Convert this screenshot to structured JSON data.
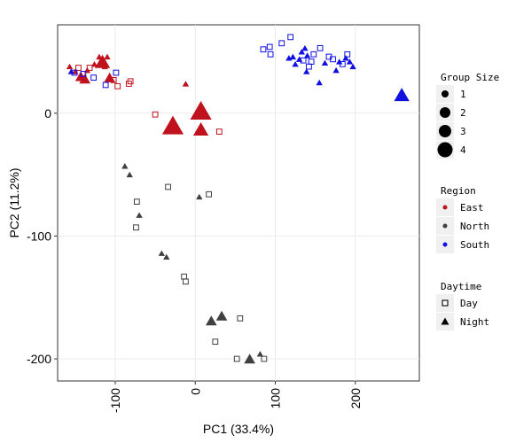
{
  "chart_data": {
    "type": "scatter",
    "xlabel": "PC1 (33.4%)",
    "ylabel": "PC2 (11.2%)",
    "xlim": [
      -172,
      280
    ],
    "ylim": [
      -218,
      72
    ],
    "x_ticks": [
      -100,
      0,
      100,
      200
    ],
    "y_ticks": [
      0,
      -100,
      -200
    ],
    "x_tick_labels": [
      "-100",
      "0",
      "100",
      "200"
    ],
    "y_tick_labels": [
      "0",
      "-100",
      "-200"
    ],
    "grid": true,
    "legend_position": "right",
    "colors": {
      "East": "#c0111e",
      "North": "#404040",
      "South": "#1010e0"
    },
    "legends": {
      "size": {
        "title": "Group Size",
        "items": [
          "1",
          "2",
          "3",
          "4"
        ]
      },
      "region": {
        "title": "Region",
        "items": [
          "East",
          "North",
          "South"
        ]
      },
      "daytime": {
        "title": "Daytime",
        "items": [
          "Day",
          "Night"
        ]
      }
    },
    "points": [
      {
        "x": -157,
        "y": 38,
        "region": "East",
        "daytime": "Night",
        "size": 1
      },
      {
        "x": -150,
        "y": 34,
        "region": "East",
        "daytime": "Night",
        "size": 1
      },
      {
        "x": -146,
        "y": 37,
        "region": "East",
        "daytime": "Day",
        "size": 1
      },
      {
        "x": -143,
        "y": 30,
        "region": "East",
        "daytime": "Night",
        "size": 2
      },
      {
        "x": -138,
        "y": 28,
        "region": "East",
        "daytime": "Night",
        "size": 2
      },
      {
        "x": -135,
        "y": 35,
        "region": "East",
        "daytime": "Night",
        "size": 1
      },
      {
        "x": -132,
        "y": 37,
        "region": "East",
        "daytime": "Day",
        "size": 1
      },
      {
        "x": -126,
        "y": 40,
        "region": "East",
        "daytime": "Night",
        "size": 1
      },
      {
        "x": -120,
        "y": 46,
        "region": "East",
        "daytime": "Night",
        "size": 1
      },
      {
        "x": -116,
        "y": 42,
        "region": "East",
        "daytime": "Night",
        "size": 3
      },
      {
        "x": -113,
        "y": 38,
        "region": "East",
        "daytime": "Night",
        "size": 1
      },
      {
        "x": -110,
        "y": 46,
        "region": "East",
        "daytime": "Night",
        "size": 1
      },
      {
        "x": -107,
        "y": 29,
        "region": "East",
        "daytime": "Night",
        "size": 2
      },
      {
        "x": -102,
        "y": 27,
        "region": "East",
        "daytime": "Day",
        "size": 1
      },
      {
        "x": -97,
        "y": 22,
        "region": "East",
        "daytime": "Day",
        "size": 1
      },
      {
        "x": -83,
        "y": 24,
        "region": "East",
        "daytime": "Day",
        "size": 1
      },
      {
        "x": -81,
        "y": 26,
        "region": "East",
        "daytime": "Day",
        "size": 1
      },
      {
        "x": -12,
        "y": 24,
        "region": "East",
        "daytime": "Night",
        "size": 1
      },
      {
        "x": -50,
        "y": -1,
        "region": "East",
        "daytime": "Day",
        "size": 1
      },
      {
        "x": -28,
        "y": -10,
        "region": "East",
        "daytime": "Night",
        "size": 4
      },
      {
        "x": 7,
        "y": 2,
        "region": "East",
        "daytime": "Night",
        "size": 4
      },
      {
        "x": 7,
        "y": -13,
        "region": "East",
        "daytime": "Night",
        "size": 3
      },
      {
        "x": 30,
        "y": -15,
        "region": "East",
        "daytime": "Day",
        "size": 1
      },
      {
        "x": -155,
        "y": 34,
        "region": "South",
        "daytime": "Night",
        "size": 1
      },
      {
        "x": -151,
        "y": 33,
        "region": "South",
        "daytime": "Day",
        "size": 1
      },
      {
        "x": -140,
        "y": 32,
        "region": "South",
        "daytime": "Day",
        "size": 1
      },
      {
        "x": -127,
        "y": 29,
        "region": "South",
        "daytime": "Day",
        "size": 1
      },
      {
        "x": -112,
        "y": 23,
        "region": "South",
        "daytime": "Day",
        "size": 1
      },
      {
        "x": -99,
        "y": 33,
        "region": "South",
        "daytime": "Day",
        "size": 1
      },
      {
        "x": 85,
        "y": 52,
        "region": "South",
        "daytime": "Day",
        "size": 1
      },
      {
        "x": 93,
        "y": 54,
        "region": "South",
        "daytime": "Day",
        "size": 1
      },
      {
        "x": 94,
        "y": 48,
        "region": "South",
        "daytime": "Day",
        "size": 1
      },
      {
        "x": 108,
        "y": 57,
        "region": "South",
        "daytime": "Day",
        "size": 1
      },
      {
        "x": 119,
        "y": 62,
        "region": "South",
        "daytime": "Day",
        "size": 1
      },
      {
        "x": 117,
        "y": 45,
        "region": "South",
        "daytime": "Night",
        "size": 1
      },
      {
        "x": 122,
        "y": 46,
        "region": "South",
        "daytime": "Night",
        "size": 1
      },
      {
        "x": 125,
        "y": 40,
        "region": "South",
        "daytime": "Night",
        "size": 1
      },
      {
        "x": 130,
        "y": 44,
        "region": "South",
        "daytime": "Night",
        "size": 1
      },
      {
        "x": 133,
        "y": 50,
        "region": "South",
        "daytime": "Night",
        "size": 1
      },
      {
        "x": 135,
        "y": 43,
        "region": "South",
        "daytime": "Day",
        "size": 1
      },
      {
        "x": 137,
        "y": 53,
        "region": "South",
        "daytime": "Night",
        "size": 1
      },
      {
        "x": 140,
        "y": 47,
        "region": "South",
        "daytime": "Night",
        "size": 1
      },
      {
        "x": 142,
        "y": 38,
        "region": "South",
        "daytime": "Day",
        "size": 1
      },
      {
        "x": 145,
        "y": 42,
        "region": "South",
        "daytime": "Day",
        "size": 1
      },
      {
        "x": 139,
        "y": 34,
        "region": "South",
        "daytime": "Night",
        "size": 1
      },
      {
        "x": 148,
        "y": 48,
        "region": "South",
        "daytime": "Day",
        "size": 1
      },
      {
        "x": 155,
        "y": 25,
        "region": "South",
        "daytime": "Night",
        "size": 1
      },
      {
        "x": 156,
        "y": 53,
        "region": "South",
        "daytime": "Day",
        "size": 1
      },
      {
        "x": 162,
        "y": 41,
        "region": "South",
        "daytime": "Night",
        "size": 1
      },
      {
        "x": 167,
        "y": 46,
        "region": "South",
        "daytime": "Day",
        "size": 1
      },
      {
        "x": 172,
        "y": 44,
        "region": "South",
        "daytime": "Day",
        "size": 1
      },
      {
        "x": 176,
        "y": 35,
        "region": "South",
        "daytime": "Night",
        "size": 1
      },
      {
        "x": 180,
        "y": 42,
        "region": "South",
        "daytime": "Night",
        "size": 1
      },
      {
        "x": 184,
        "y": 40,
        "region": "South",
        "daytime": "Day",
        "size": 1
      },
      {
        "x": 188,
        "y": 45,
        "region": "South",
        "daytime": "Night",
        "size": 1
      },
      {
        "x": 190,
        "y": 48,
        "region": "South",
        "daytime": "Day",
        "size": 1
      },
      {
        "x": 193,
        "y": 42,
        "region": "South",
        "daytime": "Night",
        "size": 1
      },
      {
        "x": 197,
        "y": 38,
        "region": "South",
        "daytime": "Night",
        "size": 1
      },
      {
        "x": 258,
        "y": 15,
        "region": "South",
        "daytime": "Night",
        "size": 3
      },
      {
        "x": -88,
        "y": -43,
        "region": "North",
        "daytime": "Night",
        "size": 1
      },
      {
        "x": -82,
        "y": -50,
        "region": "North",
        "daytime": "Night",
        "size": 1
      },
      {
        "x": -73,
        "y": -72,
        "region": "North",
        "daytime": "Day",
        "size": 1
      },
      {
        "x": -70,
        "y": -83,
        "region": "North",
        "daytime": "Night",
        "size": 1
      },
      {
        "x": -74,
        "y": -93,
        "region": "North",
        "daytime": "Day",
        "size": 1
      },
      {
        "x": -34,
        "y": -60,
        "region": "North",
        "daytime": "Day",
        "size": 1
      },
      {
        "x": 5,
        "y": -68,
        "region": "North",
        "daytime": "Night",
        "size": 1
      },
      {
        "x": 17,
        "y": -66,
        "region": "North",
        "daytime": "Day",
        "size": 1
      },
      {
        "x": -42,
        "y": -114,
        "region": "North",
        "daytime": "Night",
        "size": 1
      },
      {
        "x": -36,
        "y": -117,
        "region": "North",
        "daytime": "Night",
        "size": 1
      },
      {
        "x": -14,
        "y": -133,
        "region": "North",
        "daytime": "Day",
        "size": 1
      },
      {
        "x": -12,
        "y": -137,
        "region": "North",
        "daytime": "Day",
        "size": 1
      },
      {
        "x": 20,
        "y": -169,
        "region": "North",
        "daytime": "Night",
        "size": 2
      },
      {
        "x": 33,
        "y": -165,
        "region": "North",
        "daytime": "Night",
        "size": 2
      },
      {
        "x": 56,
        "y": -167,
        "region": "North",
        "daytime": "Day",
        "size": 1
      },
      {
        "x": 25,
        "y": -186,
        "region": "North",
        "daytime": "Day",
        "size": 1
      },
      {
        "x": 52,
        "y": -200,
        "region": "North",
        "daytime": "Day",
        "size": 1
      },
      {
        "x": 68,
        "y": -200,
        "region": "North",
        "daytime": "Night",
        "size": 2
      },
      {
        "x": 81,
        "y": -196,
        "region": "North",
        "daytime": "Night",
        "size": 1
      },
      {
        "x": 86,
        "y": -200,
        "region": "North",
        "daytime": "Day",
        "size": 1
      }
    ]
  }
}
